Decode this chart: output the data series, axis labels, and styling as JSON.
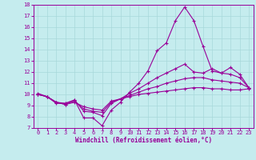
{
  "xlabel": "Windchill (Refroidissement éolien,°C)",
  "xlim": [
    -0.5,
    23.5
  ],
  "ylim": [
    7,
    18
  ],
  "yticks": [
    7,
    8,
    9,
    10,
    11,
    12,
    13,
    14,
    15,
    16,
    17,
    18
  ],
  "xticks": [
    0,
    1,
    2,
    3,
    4,
    5,
    6,
    7,
    8,
    9,
    10,
    11,
    12,
    13,
    14,
    15,
    16,
    17,
    18,
    19,
    20,
    21,
    22,
    23
  ],
  "bg_color": "#c5ecee",
  "line_color": "#990099",
  "grid_color": "#a8d8da",
  "lines": [
    {
      "x": [
        0,
        1,
        2,
        3,
        4,
        5,
        6,
        7,
        8,
        9,
        10,
        11,
        12,
        13,
        14,
        15,
        16,
        17,
        18,
        19,
        20,
        21,
        22,
        23
      ],
      "y": [
        10.1,
        9.8,
        9.2,
        9.2,
        9.5,
        7.9,
        7.9,
        7.2,
        8.6,
        9.3,
        10.2,
        11.0,
        12.1,
        13.9,
        14.6,
        16.6,
        17.8,
        16.6,
        14.3,
        12.1,
        11.9,
        12.4,
        11.8,
        10.6
      ]
    },
    {
      "x": [
        0,
        1,
        2,
        3,
        4,
        5,
        6,
        7,
        8,
        9,
        10,
        11,
        12,
        13,
        14,
        15,
        16,
        17,
        18,
        19,
        20,
        21,
        22,
        23
      ],
      "y": [
        10.0,
        9.8,
        9.3,
        9.2,
        9.5,
        8.5,
        8.4,
        8.1,
        9.2,
        9.6,
        10.1,
        10.5,
        11.0,
        11.5,
        11.9,
        12.3,
        12.7,
        12.0,
        11.9,
        12.3,
        11.9,
        11.8,
        11.5,
        10.6
      ]
    },
    {
      "x": [
        0,
        1,
        2,
        3,
        4,
        5,
        6,
        7,
        8,
        9,
        10,
        11,
        12,
        13,
        14,
        15,
        16,
        17,
        18,
        19,
        20,
        21,
        22,
        23
      ],
      "y": [
        10.0,
        9.8,
        9.3,
        9.1,
        9.4,
        8.7,
        8.5,
        8.4,
        9.3,
        9.6,
        9.9,
        10.2,
        10.5,
        10.7,
        11.0,
        11.2,
        11.4,
        11.5,
        11.5,
        11.3,
        11.2,
        11.1,
        11.0,
        10.6
      ]
    },
    {
      "x": [
        0,
        1,
        2,
        3,
        4,
        5,
        6,
        7,
        8,
        9,
        10,
        11,
        12,
        13,
        14,
        15,
        16,
        17,
        18,
        19,
        20,
        21,
        22,
        23
      ],
      "y": [
        10.0,
        9.8,
        9.3,
        9.1,
        9.3,
        8.9,
        8.7,
        8.6,
        9.4,
        9.6,
        9.8,
        10.0,
        10.1,
        10.2,
        10.3,
        10.4,
        10.5,
        10.6,
        10.6,
        10.5,
        10.5,
        10.4,
        10.4,
        10.5
      ]
    }
  ]
}
